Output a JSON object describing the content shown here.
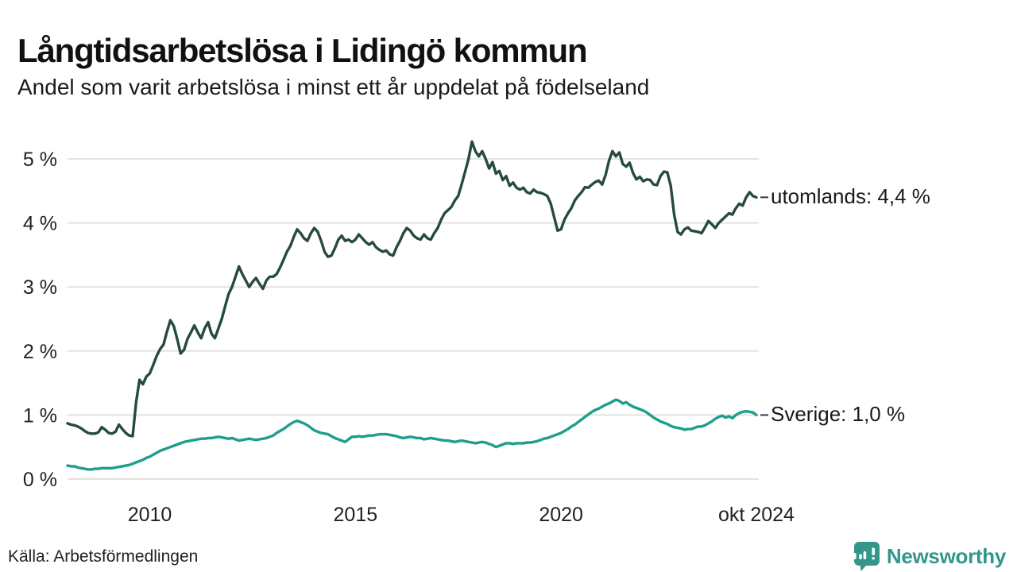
{
  "header": {
    "title": "Långtidsarbetslösa i Lidingö kommun",
    "subtitle": "Andel som varit arbetslösa i minst ett år uppdelat på födelseland"
  },
  "annotations": {
    "utomlands_label": "utomlands: 4,4 %",
    "sverige_label": "Sverige: 1,0 %"
  },
  "footer": {
    "source": "Källa: Arbetsförmedlingen",
    "brand": "Newsworthy"
  },
  "colors": {
    "utomlands_line": "#264a42",
    "sverige_line": "#1e9e8d",
    "grid": "#e3e3e3",
    "axis_text": "#222222",
    "annotation_tick": "#3a3a3a",
    "brand_teal": "#33968b"
  },
  "chart_data": {
    "type": "line",
    "title": "Långtidsarbetslösa i Lidingö kommun",
    "subtitle": "Andel som varit arbetslösa i minst ett år uppdelat på födelseland",
    "unit": "%",
    "interval": "monthly",
    "x_start_year": 2008,
    "x_end_year": 2024.75,
    "ylim": [
      0,
      5.5
    ],
    "grid": true,
    "y_ticks": [
      {
        "value": 0,
        "label": "0 %"
      },
      {
        "value": 1,
        "label": "1 %"
      },
      {
        "value": 2,
        "label": "2 %"
      },
      {
        "value": 3,
        "label": "3 %"
      },
      {
        "value": 4,
        "label": "4 %"
      },
      {
        "value": 5,
        "label": "5 %"
      }
    ],
    "x_ticks": [
      {
        "year": 2010,
        "label": "2010"
      },
      {
        "year": 2015,
        "label": "2015"
      },
      {
        "year": 2020,
        "label": "2020"
      },
      {
        "year": 2024.75,
        "label": "okt 2024"
      }
    ],
    "series": [
      {
        "name": "utomlands",
        "label": "utomlands: 4,4 %",
        "last_value": 4.4,
        "color": "#264a42",
        "values": [
          0.87,
          0.85,
          0.84,
          0.82,
          0.79,
          0.75,
          0.72,
          0.71,
          0.71,
          0.73,
          0.81,
          0.77,
          0.72,
          0.71,
          0.74,
          0.85,
          0.78,
          0.72,
          0.68,
          0.67,
          1.2,
          1.55,
          1.48,
          1.6,
          1.65,
          1.78,
          1.92,
          2.03,
          2.1,
          2.3,
          2.48,
          2.39,
          2.19,
          1.96,
          2.02,
          2.19,
          2.29,
          2.4,
          2.29,
          2.2,
          2.35,
          2.45,
          2.27,
          2.2,
          2.35,
          2.5,
          2.7,
          2.89,
          3.0,
          3.16,
          3.32,
          3.2,
          3.1,
          3.0,
          3.08,
          3.14,
          3.05,
          2.97,
          3.1,
          3.16,
          3.16,
          3.2,
          3.3,
          3.42,
          3.55,
          3.64,
          3.78,
          3.9,
          3.84,
          3.76,
          3.72,
          3.84,
          3.92,
          3.86,
          3.72,
          3.55,
          3.47,
          3.49,
          3.6,
          3.74,
          3.8,
          3.72,
          3.74,
          3.7,
          3.74,
          3.82,
          3.76,
          3.7,
          3.66,
          3.7,
          3.62,
          3.58,
          3.55,
          3.57,
          3.51,
          3.49,
          3.62,
          3.72,
          3.84,
          3.92,
          3.88,
          3.8,
          3.76,
          3.74,
          3.82,
          3.76,
          3.74,
          3.84,
          3.92,
          4.05,
          4.15,
          4.2,
          4.25,
          4.35,
          4.42,
          4.6,
          4.8,
          5.0,
          5.27,
          5.12,
          5.04,
          5.12,
          5.0,
          4.85,
          4.95,
          4.77,
          4.81,
          4.67,
          4.73,
          4.58,
          4.63,
          4.55,
          4.52,
          4.55,
          4.48,
          4.46,
          4.52,
          4.48,
          4.47,
          4.45,
          4.42,
          4.3,
          4.09,
          3.88,
          3.9,
          4.05,
          4.15,
          4.23,
          4.35,
          4.42,
          4.48,
          4.56,
          4.55,
          4.6,
          4.64,
          4.66,
          4.6,
          4.75,
          4.97,
          5.12,
          5.04,
          5.1,
          4.92,
          4.88,
          4.94,
          4.78,
          4.68,
          4.72,
          4.65,
          4.68,
          4.67,
          4.6,
          4.59,
          4.73,
          4.8,
          4.79,
          4.58,
          4.13,
          3.86,
          3.82,
          3.9,
          3.93,
          3.88,
          3.87,
          3.86,
          3.84,
          3.93,
          4.03,
          3.98,
          3.92,
          4.0,
          4.05,
          4.1,
          4.15,
          4.13,
          4.23,
          4.3,
          4.27,
          4.4,
          4.48,
          4.42,
          4.4
        ]
      },
      {
        "name": "Sverige",
        "label": "Sverige: 1,0 %",
        "last_value": 1.0,
        "color": "#1e9e8d",
        "values": [
          0.21,
          0.2,
          0.2,
          0.18,
          0.17,
          0.16,
          0.15,
          0.15,
          0.16,
          0.16,
          0.17,
          0.17,
          0.17,
          0.17,
          0.18,
          0.19,
          0.2,
          0.21,
          0.22,
          0.24,
          0.26,
          0.28,
          0.3,
          0.33,
          0.35,
          0.38,
          0.41,
          0.44,
          0.46,
          0.48,
          0.5,
          0.52,
          0.54,
          0.56,
          0.58,
          0.59,
          0.6,
          0.61,
          0.62,
          0.63,
          0.63,
          0.64,
          0.64,
          0.65,
          0.66,
          0.65,
          0.64,
          0.63,
          0.64,
          0.62,
          0.6,
          0.61,
          0.62,
          0.63,
          0.62,
          0.61,
          0.62,
          0.63,
          0.64,
          0.66,
          0.68,
          0.72,
          0.75,
          0.78,
          0.82,
          0.86,
          0.89,
          0.91,
          0.89,
          0.87,
          0.84,
          0.8,
          0.76,
          0.74,
          0.72,
          0.71,
          0.7,
          0.67,
          0.64,
          0.62,
          0.6,
          0.58,
          0.62,
          0.66,
          0.66,
          0.67,
          0.66,
          0.67,
          0.68,
          0.68,
          0.69,
          0.7,
          0.7,
          0.7,
          0.69,
          0.68,
          0.67,
          0.65,
          0.64,
          0.65,
          0.66,
          0.65,
          0.64,
          0.64,
          0.62,
          0.63,
          0.64,
          0.63,
          0.62,
          0.61,
          0.6,
          0.6,
          0.59,
          0.58,
          0.59,
          0.6,
          0.59,
          0.58,
          0.57,
          0.56,
          0.57,
          0.58,
          0.57,
          0.55,
          0.53,
          0.5,
          0.52,
          0.54,
          0.56,
          0.56,
          0.55,
          0.56,
          0.56,
          0.56,
          0.57,
          0.57,
          0.58,
          0.59,
          0.61,
          0.63,
          0.64,
          0.66,
          0.68,
          0.7,
          0.72,
          0.75,
          0.78,
          0.82,
          0.85,
          0.89,
          0.93,
          0.97,
          1.01,
          1.05,
          1.08,
          1.1,
          1.13,
          1.16,
          1.18,
          1.21,
          1.24,
          1.22,
          1.18,
          1.2,
          1.16,
          1.13,
          1.11,
          1.09,
          1.07,
          1.04,
          1.0,
          0.96,
          0.93,
          0.9,
          0.88,
          0.86,
          0.83,
          0.81,
          0.8,
          0.79,
          0.77,
          0.78,
          0.78,
          0.8,
          0.82,
          0.82,
          0.84,
          0.87,
          0.9,
          0.94,
          0.97,
          0.99,
          0.96,
          0.98,
          0.95,
          1.0,
          1.03,
          1.05,
          1.06,
          1.05,
          1.04,
          1.0
        ]
      }
    ]
  }
}
